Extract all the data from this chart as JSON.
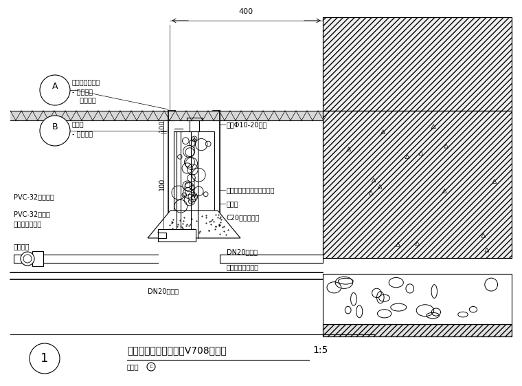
{
  "title": "快速接水栓安装详图（V708阀箱）",
  "scale": "1:5",
  "bg_color": "#ffffff",
  "annotations": {
    "ann_quangao": "全铜快速接接栓",
    "ann_chaoxiang1": "- 查向图详",
    "ann_zhongzhi": "  种植土面",
    "ann_famenjing": "阀门箱",
    "ann_chaoxiang2": "- 查向图详",
    "ann_pvc32_basket": "PVC-32排水篮子",
    "ann_pvc32_pipe1": "PVC-32排水管",
    "ann_pvc32_pipe2": "接到附近雨水井",
    "ann_tizi": "丁字管接",
    "ann_dn20_bottom": "DN20短接管",
    "ann_filled": "填满Φ10-20碎石",
    "ann_plastic_box": "成品塑料阀门箱，外观绿色",
    "ann_outer_joint": "外牙接",
    "ann_c20": "C20混凝土填实",
    "ann_dn20_mid": "DN20短接管",
    "ann_main_valve": "主线上分段设阀门",
    "ann_400": "400",
    "ann_100a": "100",
    "ann_100b": "100",
    "figure_label": "图件："
  }
}
